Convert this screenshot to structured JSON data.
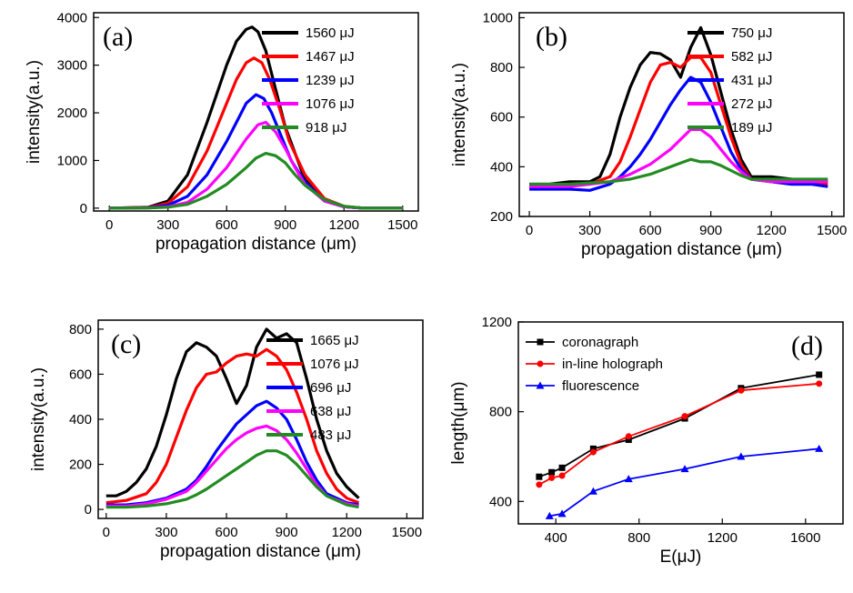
{
  "chart_data": [
    {
      "panel": "(a)",
      "type": "line",
      "xlabel": "propagation distance (μm)",
      "ylabel": "intensity(a.u.)",
      "xlim": [
        -80,
        1580
      ],
      "ylim": [
        -60,
        4100
      ],
      "xticks": [
        0,
        300,
        600,
        900,
        1200,
        1500
      ],
      "yticks": [
        0,
        1000,
        2000,
        3000,
        4000
      ],
      "legend_position": "top-right",
      "series": [
        {
          "name": "1560 μJ",
          "color": "#000000",
          "x": [
            0,
            200,
            300,
            400,
            500,
            600,
            650,
            700,
            730,
            760,
            800,
            850,
            900,
            1000,
            1100,
            1200,
            1300,
            1400,
            1500
          ],
          "values": [
            0,
            20,
            150,
            700,
            1800,
            3000,
            3500,
            3750,
            3800,
            3700,
            3300,
            2500,
            1700,
            600,
            150,
            30,
            0,
            0,
            0
          ]
        },
        {
          "name": "1467 μJ",
          "color": "#ff0000",
          "x": [
            0,
            200,
            300,
            400,
            500,
            600,
            650,
            700,
            740,
            780,
            820,
            870,
            920,
            1000,
            1100,
            1200,
            1300,
            1400,
            1500
          ],
          "values": [
            0,
            15,
            100,
            450,
            1200,
            2200,
            2700,
            3050,
            3150,
            3050,
            2700,
            2100,
            1400,
            700,
            200,
            40,
            0,
            0,
            0
          ]
        },
        {
          "name": "1239 μJ",
          "color": "#0000ff",
          "x": [
            0,
            200,
            300,
            400,
            500,
            600,
            650,
            700,
            750,
            790,
            830,
            880,
            930,
            1000,
            1100,
            1200,
            1300,
            1400,
            1500
          ],
          "values": [
            0,
            10,
            60,
            250,
            700,
            1400,
            1800,
            2200,
            2380,
            2300,
            2000,
            1500,
            1000,
            550,
            150,
            30,
            0,
            0,
            0
          ]
        },
        {
          "name": "1076 μJ",
          "color": "#ff00ff",
          "x": [
            0,
            200,
            300,
            400,
            500,
            600,
            700,
            760,
            800,
            850,
            900,
            950,
            1000,
            1100,
            1200,
            1300,
            1400,
            1500
          ],
          "values": [
            0,
            5,
            30,
            120,
            400,
            850,
            1450,
            1750,
            1800,
            1600,
            1250,
            850,
            500,
            150,
            30,
            0,
            0,
            0
          ]
        },
        {
          "name": "918 μJ",
          "color": "#228b22",
          "x": [
            0,
            200,
            300,
            400,
            500,
            600,
            700,
            750,
            800,
            850,
            900,
            950,
            1000,
            1100,
            1200,
            1300,
            1400,
            1500
          ],
          "values": [
            0,
            5,
            20,
            80,
            250,
            500,
            850,
            1050,
            1150,
            1100,
            950,
            700,
            480,
            180,
            40,
            0,
            0,
            0
          ]
        }
      ]
    },
    {
      "panel": "(b)",
      "type": "line",
      "xlabel": "propagation distance (μm)",
      "ylabel": "intensity(a.u.)",
      "xlim": [
        -50,
        1560
      ],
      "ylim": [
        200,
        1020
      ],
      "xticks": [
        0,
        300,
        600,
        900,
        1200,
        1500
      ],
      "yticks": [
        200,
        400,
        600,
        800,
        1000
      ],
      "legend_position": "top-right",
      "series": [
        {
          "name": "750 μJ",
          "color": "#000000",
          "x": [
            0,
            100,
            200,
            300,
            350,
            400,
            450,
            500,
            550,
            600,
            650,
            700,
            750,
            800,
            850,
            900,
            950,
            1000,
            1050,
            1100,
            1200,
            1300,
            1400,
            1480
          ],
          "values": [
            330,
            330,
            340,
            340,
            360,
            450,
            600,
            720,
            810,
            860,
            855,
            830,
            760,
            880,
            960,
            850,
            700,
            550,
            430,
            360,
            360,
            350,
            340,
            340
          ]
        },
        {
          "name": "582 μJ",
          "color": "#ff0000",
          "x": [
            0,
            100,
            200,
            300,
            400,
            450,
            500,
            550,
            600,
            650,
            700,
            750,
            800,
            850,
            900,
            950,
            1000,
            1050,
            1100,
            1200,
            1300,
            1400,
            1480
          ],
          "values": [
            320,
            320,
            330,
            330,
            360,
            420,
            520,
            630,
            740,
            810,
            820,
            800,
            840,
            840,
            780,
            650,
            520,
            410,
            350,
            340,
            330,
            330,
            330
          ]
        },
        {
          "name": "431 μJ",
          "color": "#0000ff",
          "x": [
            0,
            100,
            200,
            300,
            400,
            450,
            500,
            550,
            600,
            650,
            700,
            750,
            800,
            850,
            900,
            950,
            1000,
            1050,
            1100,
            1200,
            1300,
            1400,
            1480
          ],
          "values": [
            310,
            310,
            310,
            305,
            330,
            360,
            400,
            450,
            510,
            580,
            650,
            710,
            760,
            740,
            660,
            560,
            460,
            390,
            350,
            340,
            330,
            330,
            320
          ]
        },
        {
          "name": "272 μJ",
          "color": "#ff00ff",
          "x": [
            0,
            100,
            200,
            300,
            400,
            500,
            600,
            650,
            700,
            750,
            800,
            850,
            900,
            950,
            1000,
            1050,
            1100,
            1200,
            1300,
            1400,
            1480
          ],
          "values": [
            320,
            320,
            320,
            330,
            340,
            370,
            410,
            440,
            470,
            510,
            550,
            550,
            520,
            470,
            420,
            380,
            350,
            340,
            340,
            340,
            340
          ]
        },
        {
          "name": "189 μJ",
          "color": "#228b22",
          "x": [
            0,
            100,
            200,
            300,
            400,
            500,
            600,
            700,
            750,
            800,
            850,
            900,
            950,
            1000,
            1050,
            1100,
            1200,
            1300,
            1400,
            1480
          ],
          "values": [
            330,
            330,
            330,
            335,
            340,
            350,
            370,
            400,
            415,
            430,
            420,
            420,
            405,
            385,
            365,
            350,
            350,
            350,
            350,
            350
          ]
        }
      ]
    },
    {
      "panel": "(c)",
      "type": "line",
      "xlabel": "propagation distance (μm)",
      "ylabel": "intensity(a.u.)",
      "xlim": [
        -40,
        1580
      ],
      "ylim": [
        -40,
        840
      ],
      "xticks": [
        0,
        300,
        600,
        900,
        1200,
        1500
      ],
      "yticks": [
        0,
        200,
        400,
        600,
        800
      ],
      "legend_position": "top-right",
      "series": [
        {
          "name": "1665 μJ",
          "color": "#000000",
          "x": [
            0,
            50,
            100,
            150,
            200,
            250,
            300,
            350,
            400,
            450,
            500,
            550,
            600,
            650,
            700,
            750,
            800,
            850,
            900,
            950,
            1000,
            1050,
            1100,
            1150,
            1200,
            1260
          ],
          "values": [
            60,
            60,
            80,
            120,
            180,
            280,
            420,
            580,
            700,
            740,
            720,
            680,
            580,
            470,
            550,
            720,
            800,
            760,
            780,
            740,
            580,
            400,
            260,
            160,
            100,
            50
          ]
        },
        {
          "name": "1076 μJ",
          "color": "#ff0000",
          "x": [
            0,
            100,
            200,
            250,
            300,
            350,
            400,
            450,
            500,
            550,
            600,
            650,
            700,
            750,
            800,
            850,
            900,
            950,
            1000,
            1050,
            1100,
            1150,
            1200,
            1260
          ],
          "values": [
            30,
            40,
            70,
            120,
            200,
            320,
            440,
            540,
            600,
            610,
            650,
            680,
            690,
            680,
            710,
            680,
            620,
            520,
            400,
            260,
            160,
            90,
            50,
            30
          ]
        },
        {
          "name": "696 μJ",
          "color": "#0000ff",
          "x": [
            0,
            100,
            200,
            300,
            400,
            450,
            500,
            550,
            600,
            650,
            700,
            750,
            800,
            850,
            900,
            950,
            1000,
            1050,
            1100,
            1200,
            1260
          ],
          "values": [
            20,
            20,
            30,
            50,
            90,
            130,
            190,
            260,
            320,
            380,
            420,
            460,
            480,
            450,
            400,
            310,
            210,
            130,
            70,
            30,
            20
          ]
        },
        {
          "name": "638 μJ",
          "color": "#ff00ff",
          "x": [
            0,
            100,
            200,
            300,
            400,
            450,
            500,
            550,
            600,
            650,
            700,
            750,
            800,
            850,
            900,
            950,
            1000,
            1050,
            1100,
            1200,
            1260
          ],
          "values": [
            15,
            15,
            25,
            45,
            80,
            120,
            170,
            220,
            270,
            310,
            340,
            360,
            370,
            350,
            310,
            250,
            180,
            110,
            60,
            25,
            15
          ]
        },
        {
          "name": "483 μJ",
          "color": "#228b22",
          "x": [
            0,
            100,
            200,
            300,
            400,
            450,
            500,
            550,
            600,
            650,
            700,
            750,
            800,
            850,
            900,
            950,
            1000,
            1050,
            1100,
            1200,
            1260
          ],
          "values": [
            10,
            10,
            15,
            25,
            45,
            65,
            90,
            120,
            150,
            180,
            210,
            240,
            260,
            260,
            240,
            200,
            150,
            100,
            60,
            20,
            10
          ]
        }
      ]
    },
    {
      "panel": "(d)",
      "type": "line",
      "xlabel": "E(μJ)",
      "ylabel": "length(μm)",
      "xlim": [
        220,
        1780
      ],
      "ylim": [
        300,
        1200
      ],
      "xticks": [
        400,
        800,
        1200,
        1600
      ],
      "yticks": [
        400,
        800,
        1200
      ],
      "legend_position": "top-left",
      "series": [
        {
          "name": "coronagraph",
          "color": "#000000",
          "marker": "square",
          "x": [
            320,
            380,
            430,
            580,
            750,
            1020,
            1290,
            1665
          ],
          "values": [
            510,
            530,
            550,
            635,
            675,
            770,
            905,
            965
          ]
        },
        {
          "name": "in-line holograph",
          "color": "#ff0000",
          "marker": "circle",
          "x": [
            320,
            380,
            430,
            580,
            750,
            1020,
            1290,
            1665
          ],
          "values": [
            475,
            505,
            515,
            620,
            690,
            780,
            895,
            925
          ]
        },
        {
          "name": "fluorescence",
          "color": "#0000ff",
          "marker": "triangle",
          "x": [
            370,
            430,
            580,
            750,
            1020,
            1290,
            1665
          ],
          "values": [
            335,
            345,
            445,
            500,
            545,
            600,
            635
          ]
        }
      ]
    }
  ]
}
